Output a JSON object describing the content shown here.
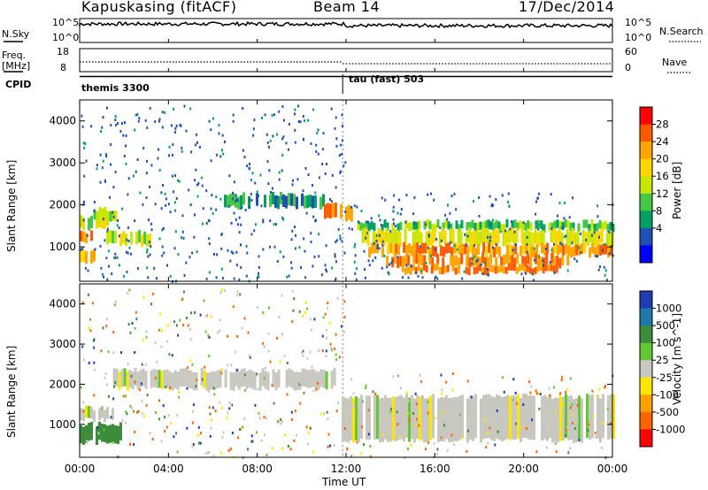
{
  "header": {
    "station": "Kapuskasing (fitACF)",
    "beam": "Beam 14",
    "date": "17/Dec/2014"
  },
  "panel_labels": {
    "nsky": "N.Sky",
    "nsearch": "N.Search",
    "freq_line1": "Freq.",
    "freq_line2": "[MHz]",
    "nave": "Nave",
    "cpid": "CPID",
    "cpid_first": "themis 3300",
    "cpid_second": "tau (fast) 503",
    "nsky_ticks": [
      "10^5",
      "10^0"
    ],
    "nsearch_ticks": [
      "10^5",
      "10^0"
    ],
    "freq_ticks": [
      "18",
      "8"
    ],
    "nave_ticks": [
      "60",
      "0"
    ]
  },
  "power_colorbar": {
    "label": "Power [dB]",
    "ticks": [
      "28",
      "24",
      "20",
      "16",
      "12",
      "8",
      "4"
    ],
    "colors": [
      "#ff0000",
      "#ff5a00",
      "#ffa500",
      "#ffd700",
      "#c8e600",
      "#46c846",
      "#00a064",
      "#2050b4",
      "#0000ff"
    ]
  },
  "velocity_colorbar": {
    "label": "Velocity [m s^-1]",
    "ticks": [
      "1000",
      "500",
      "100",
      "25",
      "-25",
      "-100",
      "-500",
      "-1000"
    ],
    "colors": [
      "#1e3cb4",
      "#1e78aa",
      "#3c8c3c",
      "#64c832",
      "#c8c8c0",
      "#ffe600",
      "#ffa000",
      "#ff6400",
      "#ff0000"
    ]
  },
  "chart_data": {
    "type": "heatmap",
    "xlabel": "Time UT",
    "ylabel": "Slant Range [km]",
    "xticks": [
      "00:00",
      "04:00",
      "08:00",
      "12:00",
      "16:00",
      "20:00",
      "00:00"
    ],
    "xlim_hours": [
      0,
      24
    ],
    "ylim_km": [
      180,
      4500
    ],
    "yticks": [
      1000,
      2000,
      3000,
      4000
    ],
    "mode_change_hour": 11.85,
    "frequency_mhz": {
      "before": 10.5,
      "after": 10.5
    },
    "nave": {
      "before": 22,
      "after": 30
    },
    "power_bands": [
      {
        "t0": 0.0,
        "t1": 0.5,
        "r0": 1100,
        "r1": 1350,
        "db": 28
      },
      {
        "t0": 0.0,
        "t1": 0.6,
        "r0": 600,
        "r1": 900,
        "db": 22
      },
      {
        "t0": 0.0,
        "t1": 1.2,
        "r0": 1450,
        "r1": 1750,
        "db": 18
      },
      {
        "t0": 0.5,
        "t1": 1.6,
        "r0": 1650,
        "r1": 1900,
        "db": 16
      },
      {
        "t0": 1.2,
        "t1": 3.2,
        "r0": 1050,
        "r1": 1350,
        "db": 18
      },
      {
        "t0": 6.5,
        "t1": 11.0,
        "r0": 1950,
        "r1": 2250,
        "db": 10
      },
      {
        "t0": 11.0,
        "t1": 12.2,
        "r0": 1650,
        "r1": 2000,
        "db": 28
      },
      {
        "t0": 12.5,
        "t1": 24.0,
        "r0": 1400,
        "r1": 1600,
        "db": 14
      },
      {
        "t0": 12.7,
        "t1": 24.0,
        "r0": 1050,
        "r1": 1400,
        "db": 20
      },
      {
        "t0": 13.0,
        "t1": 24.0,
        "r0": 800,
        "r1": 1050,
        "db": 26
      },
      {
        "t0": 13.8,
        "t1": 22.0,
        "r0": 550,
        "r1": 800,
        "db": 28
      },
      {
        "t0": 14.5,
        "t1": 21.5,
        "r0": 380,
        "r1": 550,
        "db": 28
      }
    ],
    "velocity_bands": [
      {
        "t0": 0.0,
        "t1": 1.5,
        "r0": 1100,
        "r1": 1400,
        "v": 0
      },
      {
        "t0": 0.0,
        "t1": 1.8,
        "r0": 550,
        "r1": 1000,
        "v": 150
      },
      {
        "t0": 1.5,
        "t1": 11.5,
        "r0": 1900,
        "r1": 2350,
        "v": 0
      },
      {
        "t0": 11.8,
        "t1": 24.0,
        "r0": 600,
        "r1": 1700,
        "v": 0
      }
    ]
  }
}
